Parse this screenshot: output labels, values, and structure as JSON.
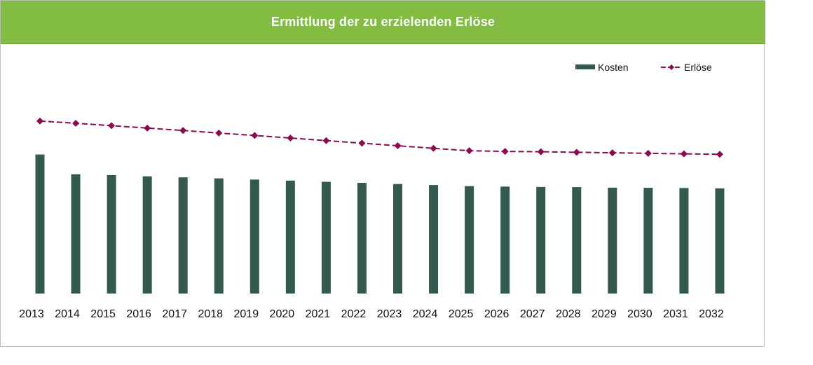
{
  "title": "Ermittlung der zu erzielenden Erlöse",
  "colors": {
    "header": "#82bc41",
    "kosten": "#335a4d",
    "erloese": "#8b0a50"
  },
  "chart_data": {
    "type": "bar",
    "title": "Ermittlung der zu erzielenden Erlöse",
    "xlabel": "",
    "ylabel": "",
    "categories": [
      "2013",
      "2014",
      "2015",
      "2016",
      "2017",
      "2018",
      "2019",
      "2020",
      "2021",
      "2022",
      "2023",
      "2024",
      "2025",
      "2026",
      "2027",
      "2028",
      "2029",
      "2030",
      "2031",
      "2032"
    ],
    "ylim": [
      0,
      100
    ],
    "grid": false,
    "legend_position": "top-right",
    "series": [
      {
        "name": "Kosten",
        "type": "bar",
        "values": [
          81,
          69.5,
          69,
          68.3,
          67.7,
          67.1,
          66.4,
          65.8,
          65.1,
          64.5,
          63.8,
          63.2,
          62.6,
          62.3,
          62.1,
          62,
          61.7,
          61.6,
          61.5,
          61.3
        ]
      },
      {
        "name": "Erlöse",
        "type": "line",
        "marker": "diamond",
        "dash": "dashed",
        "values": [
          100.5,
          99.2,
          97.8,
          96.4,
          95,
          93.5,
          92.1,
          90.6,
          89.1,
          87.6,
          86.1,
          84.6,
          83.2,
          82.8,
          82.6,
          82.3,
          82,
          81.7,
          81.4,
          81.1
        ]
      }
    ]
  }
}
